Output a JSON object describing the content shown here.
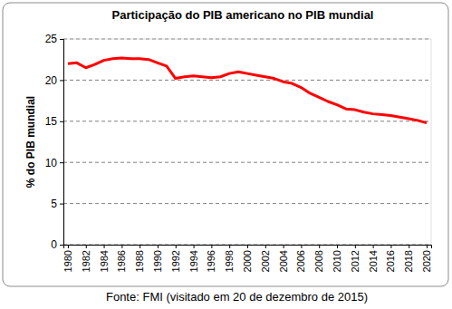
{
  "chart_data": {
    "type": "line",
    "title": "Participação do PIB americano no PIB mundial",
    "y_label": "% do PIB mundial",
    "source": "Fonte: FMI (visitado em 20 de dezembro de 2015)",
    "x": [
      1980,
      1981,
      1982,
      1983,
      1984,
      1985,
      1986,
      1987,
      1988,
      1989,
      1990,
      1991,
      1992,
      1993,
      1994,
      1995,
      1996,
      1997,
      1998,
      1999,
      2000,
      2001,
      2002,
      2003,
      2004,
      2005,
      2006,
      2007,
      2008,
      2009,
      2010,
      2011,
      2012,
      2013,
      2014,
      2015,
      2016,
      2017,
      2018,
      2019,
      2020
    ],
    "values": [
      22.0,
      22.1,
      21.5,
      21.9,
      22.4,
      22.6,
      22.7,
      22.6,
      22.6,
      22.5,
      22.1,
      21.7,
      20.2,
      20.4,
      20.5,
      20.4,
      20.3,
      20.4,
      20.8,
      21.0,
      20.8,
      20.6,
      20.4,
      20.2,
      19.8,
      19.6,
      19.1,
      18.4,
      17.9,
      17.4,
      17.0,
      16.5,
      16.4,
      16.1,
      15.9,
      15.8,
      15.7,
      15.5,
      15.3,
      15.1,
      14.8
    ],
    "color": "#ff0000",
    "xlim": [
      1979.5,
      2020.5
    ],
    "xticks": [
      1980,
      1982,
      1984,
      1986,
      1988,
      1990,
      1992,
      1994,
      1996,
      1998,
      2000,
      2002,
      2004,
      2006,
      2008,
      2010,
      2012,
      2014,
      2016,
      2018,
      2020
    ],
    "ylim": [
      0,
      25
    ],
    "yticks": [
      0,
      5,
      10,
      15,
      20,
      25
    ],
    "grid": true
  }
}
